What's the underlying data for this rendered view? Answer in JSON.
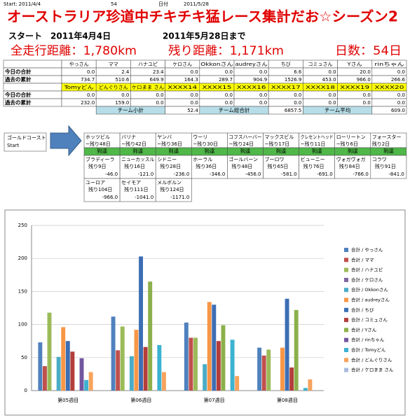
{
  "top_line": [
    "Start: 2011/4/4",
    "54",
    "日付",
    "2011/5/28"
  ],
  "title": "オーストラリア珍道中チキチキ猛レース集計だお☆シーズン2",
  "start_line": "スタート　2011年4月4日",
  "end_line": "2011年5月28日まで",
  "totals": [
    "全走行距離：1,780km",
    "残り距離：1,171km",
    "日数：54日"
  ],
  "table": {
    "header1": [
      "やっさん",
      "ママ",
      "ハナユピ",
      "ケロさん",
      "Okkonさん",
      "audreyさん",
      "ちび",
      "コミュさん",
      "Yさん",
      "rinちゃん"
    ],
    "rows1": [
      {
        "label": "今日の合計",
        "values": [
          "0.0",
          "2.4",
          "23.4",
          "0.0",
          "0.0",
          "0.0",
          "6.6",
          "0.0",
          "20.0",
          "0.0"
        ]
      },
      {
        "label": "過去の累計",
        "values": [
          "734.7",
          "510.6",
          "649.9",
          "164.3",
          "289.7",
          "904.9",
          "1526.9",
          "453.0",
          "966.0",
          "266.6"
        ]
      }
    ],
    "header2": [
      "Tomyどん",
      "どんぐりさん",
      "ケロまま さん",
      "XXXX14",
      "XXXX15",
      "XXXX16",
      "XXXX17",
      "XXXX18",
      "XXXX19",
      "XXXX20"
    ],
    "rows2": [
      {
        "label": "今日の合計",
        "values": [
          "0.0",
          "0.0",
          "0.0",
          "0.0",
          "0.0",
          "0.0",
          "0.0",
          "0.0",
          "0.0",
          "0.0"
        ]
      },
      {
        "label": "過去の累計",
        "values": [
          "232.0",
          "159.0",
          "0.0",
          "0.0",
          "0.0",
          "0.0",
          "0.0",
          "0.0",
          "0.0",
          "0.0"
        ]
      }
    ],
    "summary": [
      {
        "label": "チーム小計",
        "value": "52.4"
      },
      {
        "label": "チーム総合計",
        "value": "6857.5"
      },
      {
        "label": "チーム平均",
        "value": "609.0"
      }
    ]
  },
  "course": {
    "start": [
      "ゴールドコースト",
      "Start"
    ],
    "reached": [
      {
        "name": "ホッツビル",
        "remain": "~残り48日",
        "status": "到達"
      },
      {
        "name": "バリナ",
        "remain": "~残り42日",
        "status": "到達"
      },
      {
        "name": "ヤンバ",
        "remain": "~残り36日",
        "status": "到達"
      },
      {
        "name": "ウーリ",
        "remain": "~残り30日",
        "status": "到達"
      },
      {
        "name": "コフスハーバー",
        "remain": "~残り24日",
        "status": "到達"
      },
      {
        "name": "マックスビル",
        "remain": "~残り17日",
        "status": "到達"
      },
      {
        "name": "クレセントヘッド",
        "remain": "~残り11日",
        "status": "到達"
      },
      {
        "name": "ローリートン",
        "remain": "~残り6日",
        "status": "到達"
      },
      {
        "name": "フォースター",
        "remain": "残り2日",
        "status": "到達"
      }
    ],
    "next": [
      {
        "name": "ブラディーラ",
        "remain": "残り9日",
        "dist": "-46.0"
      },
      {
        "name": "ニューカッスル",
        "remain": "残り16日",
        "dist": "-121.0"
      },
      {
        "name": "シドニー",
        "remain": "残り28日",
        "dist": "-236.0"
      },
      {
        "name": "ホーラル",
        "remain": "残り36日",
        "dist": "-346.0"
      },
      {
        "name": "ゴールバーン",
        "remain": "残り48日",
        "dist": "-456.0"
      },
      {
        "name": "ブーロワ",
        "remain": "残り65日",
        "dist": "-581.0"
      },
      {
        "name": "ビューニー",
        "remain": "残り76日",
        "dist": "-691.0"
      },
      {
        "name": "ヴォガヴォガ",
        "remain": "残り84日",
        "dist": "-766.0"
      },
      {
        "name": "コラワ",
        "remain": "残り91日",
        "dist": "-841.0"
      }
    ],
    "last": [
      {
        "name": "ユーロア",
        "remain": "残り104日",
        "dist": "-966.0"
      },
      {
        "name": "セイモア",
        "remain": "残り111日",
        "dist": "-1041.0"
      },
      {
        "name": "メルボルン",
        "remain": "残り124日",
        "dist": "-1171.0"
      }
    ]
  },
  "chart_data": {
    "type": "bar",
    "categories": [
      "第05週目",
      "第06週目",
      "第07週目",
      "第08週目"
    ],
    "ylim": [
      0,
      250
    ],
    "yticks": [
      0,
      50,
      100,
      150,
      200,
      250
    ],
    "grid": true,
    "series": [
      {
        "name": "合計 / やっさん",
        "color": "#4F81BD",
        "values": [
          73,
          112,
          103,
          65
        ]
      },
      {
        "name": "合計 / ママ",
        "color": "#C0504D",
        "values": [
          37,
          61,
          80,
          53
        ]
      },
      {
        "name": "合計 / ハナユピ",
        "color": "#9BBB59",
        "values": [
          118,
          97,
          80,
          62
        ]
      },
      {
        "name": "合計 / ケロさん",
        "color": "#8064A2",
        "values": [
          0,
          0,
          0,
          0
        ]
      },
      {
        "name": "合計 / Okkonさん",
        "color": "#4BACC6",
        "values": [
          51,
          52,
          40,
          0
        ]
      },
      {
        "name": "合計 / audreyさん",
        "color": "#F79646",
        "values": [
          96,
          92,
          134,
          65
        ]
      },
      {
        "name": "合計 / ちび",
        "color": "#3C6EB4",
        "values": [
          75,
          203,
          130,
          139
        ]
      },
      {
        "name": "合計 / コミュさん",
        "color": "#B33E3A",
        "values": [
          59,
          66,
          75,
          35
        ]
      },
      {
        "name": "合計 / Yさん",
        "color": "#8CB04A",
        "values": [
          0,
          165,
          99,
          122
        ]
      },
      {
        "name": "合計 / rinちゃん",
        "color": "#7356A0",
        "values": [
          49,
          0,
          0,
          0
        ]
      },
      {
        "name": "合計 / Tomyどん",
        "color": "#3DB2D0",
        "values": [
          16,
          69,
          77,
          4
        ]
      },
      {
        "name": "合計 / どんぐりさん",
        "color": "#F7A35C",
        "values": [
          28,
          28,
          22,
          17
        ]
      },
      {
        "name": "合計 / ケロまま さん",
        "color": "#A9BCDD",
        "values": [
          0,
          0,
          0,
          0
        ]
      }
    ]
  }
}
